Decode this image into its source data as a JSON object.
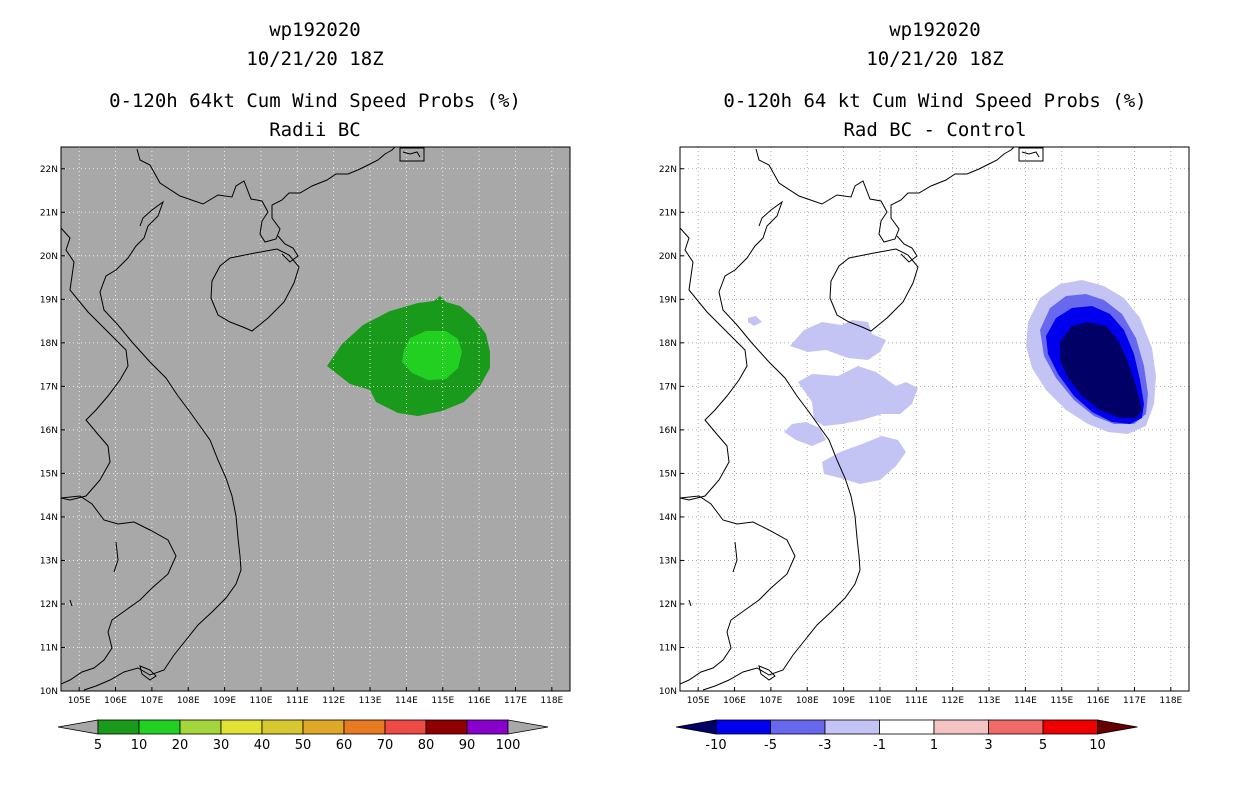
{
  "left_panel": {
    "title_line1": "wp192020",
    "title_line2": "10/21/20 18Z",
    "subtitle_line1": "0-120h 64kt Cum Wind Speed Probs (%)",
    "subtitle_line2": "Radii BC",
    "background_color": "#a8a8a8",
    "colorbar": {
      "labels": [
        "5",
        "10",
        "20",
        "30",
        "40",
        "50",
        "60",
        "70",
        "80",
        "90",
        "100"
      ],
      "colors": [
        "#1a9a1a",
        "#22d022",
        "#a2d63a",
        "#e2e234",
        "#d8c830",
        "#e0a828",
        "#e87a22",
        "#ee4a46",
        "#900000",
        "#8800cc"
      ]
    }
  },
  "right_panel": {
    "title_line1": "wp192020",
    "title_line2": "10/21/20 18Z",
    "subtitle_line1": "0-120h 64 kt Cum Wind Speed Probs (%)",
    "subtitle_line2": "Rad BC - Control",
    "background_color": "#ffffff",
    "colorbar": {
      "labels": [
        "-10",
        "-5",
        "-3",
        "-1",
        "1",
        "3",
        "5",
        "10"
      ],
      "colors": [
        "#0000ee",
        "#6868ee",
        "#c4c4f4",
        "#ffffff",
        "#f4c4c4",
        "#f06a6a",
        "#ee0000"
      ]
    }
  },
  "axes": {
    "lon_labels": [
      "105E",
      "106E",
      "107E",
      "108E",
      "109E",
      "110E",
      "111E",
      "112E",
      "113E",
      "114E",
      "115E",
      "116E",
      "117E",
      "118E"
    ],
    "lat_labels": [
      "10N",
      "11N",
      "12N",
      "13N",
      "14N",
      "15N",
      "16N",
      "17N",
      "18N",
      "19N",
      "20N",
      "21N",
      "22N"
    ],
    "lon_range": [
      104.5,
      118.5
    ],
    "lat_range": [
      10,
      22.5
    ]
  }
}
